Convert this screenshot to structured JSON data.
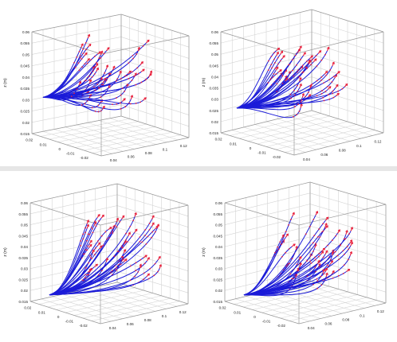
{
  "chart_data": [
    {
      "type": "line",
      "subtype": "3d-trajectories",
      "title": "",
      "zlabel": "z (m)",
      "z_ticks": [
        "0.06",
        "0.055",
        "0.05",
        "0.045",
        "0.04",
        "0.035",
        "0.03",
        "0.025",
        "0.02",
        "0.015"
      ],
      "x_ticks": [
        "0.02",
        "0.01",
        "0",
        "-0.01",
        "-0.02"
      ],
      "y_ticks": [
        "0.04",
        "0.06",
        "0.08",
        "0.1",
        "0.12"
      ],
      "xlabel": "",
      "ylabel": "",
      "zlim": [
        0.015,
        0.06
      ],
      "grid": true,
      "line_color": "#1b1bd8",
      "marker_color": "#e8203c",
      "origin": {
        "x": -0.02,
        "y": 0.0,
        "z": 0.031
      },
      "trajectory_count": 36
    },
    {
      "type": "line",
      "subtype": "3d-trajectories",
      "title": "",
      "zlabel": "z (m)",
      "z_ticks": [
        "0.06",
        "0.055",
        "0.05",
        "0.045",
        "0.04",
        "0.035",
        "0.03",
        "0.025",
        "0.02",
        "0.015"
      ],
      "x_ticks": [
        "0.02",
        "0.01",
        "0",
        "-0.01",
        "-0.02"
      ],
      "y_ticks": [
        "0.04",
        "0.06",
        "0.08",
        "0.1",
        "0.12"
      ],
      "xlabel": "",
      "ylabel": "",
      "zlim": [
        0.015,
        0.06
      ],
      "grid": true,
      "line_color": "#1b1bd8",
      "marker_color": "#e8203c",
      "origin": {
        "x": -0.02,
        "y": 0.0,
        "z": 0.026
      },
      "trajectory_count": 36
    },
    {
      "type": "line",
      "subtype": "3d-trajectories",
      "title": "",
      "zlabel": "z (m)",
      "z_ticks": [
        "0.06",
        "0.055",
        "0.05",
        "0.045",
        "0.04",
        "0.035",
        "0.03",
        "0.025",
        "0.02",
        "0.015"
      ],
      "x_ticks": [
        "0.02",
        "0.01",
        "0",
        "-0.01",
        "-0.02"
      ],
      "y_ticks": [
        "0.04",
        "0.06",
        "0.08",
        "0.1",
        "0.12"
      ],
      "xlabel": "",
      "ylabel": "",
      "zlim": [
        0.015,
        0.06
      ],
      "grid": true,
      "line_color": "#1b1bd8",
      "marker_color": "#e8203c",
      "origin": {
        "x": -0.02,
        "y": 0.0,
        "z": 0.018
      },
      "trajectory_count": 36
    },
    {
      "type": "line",
      "subtype": "3d-trajectories",
      "title": "",
      "zlabel": "z (m)",
      "z_ticks": [
        "0.06",
        "0.055",
        "0.05",
        "0.045",
        "0.04",
        "0.035",
        "0.03",
        "0.025",
        "0.02",
        "0.015"
      ],
      "x_ticks": [
        "0.02",
        "0.01",
        "0",
        "-0.01",
        "-0.02"
      ],
      "y_ticks": [
        "0.04",
        "0.06",
        "0.08",
        "0.1",
        "0.12"
      ],
      "xlabel": "",
      "ylabel": "",
      "zlim": [
        0.015,
        0.06
      ],
      "grid": true,
      "line_color": "#1b1bd8",
      "marker_color": "#e8203c",
      "origin": {
        "x": -0.02,
        "y": 0.0,
        "z": 0.018
      },
      "trajectory_count": 36
    }
  ]
}
